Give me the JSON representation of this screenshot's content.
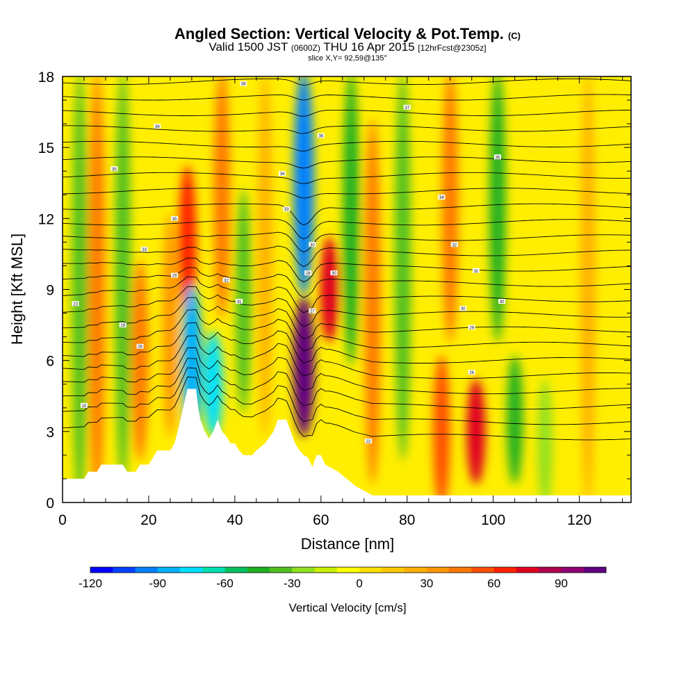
{
  "header": {
    "title": "Angled Section: Vertical Velocity & Pot.Temp.",
    "title_units": "(C)",
    "valid_prefix": "Valid 1500 JST",
    "valid_zulu": "(0600Z)",
    "valid_date": "THU 16 Apr 2015",
    "forecast_tag": "[12hrFcst@2305z]",
    "slice": "slice X,Y= 92,59@135°"
  },
  "chart_data": {
    "type": "heatmap",
    "xlabel": "Distance [nm]",
    "ylabel": "Height [Kft MSL]",
    "xlim": [
      0,
      132
    ],
    "ylim": [
      0,
      18
    ],
    "x_ticks": [
      0,
      20,
      40,
      60,
      80,
      100,
      120
    ],
    "y_ticks": [
      0,
      3,
      6,
      9,
      12,
      15,
      18
    ],
    "colorbar": {
      "label": "Vertical Velocity [cm/s]",
      "min": -120,
      "max": 110,
      "step": 10,
      "tick_values": [
        -120,
        -90,
        -60,
        -30,
        0,
        30,
        60,
        90
      ],
      "colors": [
        "#0000ff",
        "#0040ff",
        "#0080ff",
        "#00b0ff",
        "#00e0ff",
        "#00e0b0",
        "#00c060",
        "#20b020",
        "#50c020",
        "#90e020",
        "#c8f000",
        "#ffff00",
        "#ffe000",
        "#ffc800",
        "#ffb000",
        "#ff9800",
        "#ff7800",
        "#ff5000",
        "#ff2000",
        "#e00020",
        "#b00050",
        "#900070",
        "#600080"
      ]
    },
    "velocity_features": [
      {
        "x": 4,
        "z_bottom": 0,
        "z_top": 18,
        "value": -35
      },
      {
        "x": 8,
        "z_bottom": 0,
        "z_top": 18,
        "value": 40
      },
      {
        "x": 14,
        "z_bottom": 1,
        "z_top": 18,
        "value": -40
      },
      {
        "x": 18,
        "z_bottom": 2,
        "z_top": 10,
        "value": 45
      },
      {
        "x": 25,
        "z_bottom": 3,
        "z_top": 12,
        "value": 35
      },
      {
        "x": 29,
        "z_bottom": 8,
        "z_top": 14,
        "value": 65
      },
      {
        "x": 30,
        "z_bottom": 3,
        "z_top": 9,
        "value": -90
      },
      {
        "x": 35,
        "z_bottom": 3,
        "z_top": 7,
        "value": -75
      },
      {
        "x": 37,
        "z_bottom": 8,
        "z_top": 18,
        "value": 45
      },
      {
        "x": 42,
        "z_bottom": 4,
        "z_top": 13,
        "value": -35
      },
      {
        "x": 47,
        "z_bottom": 3,
        "z_top": 18,
        "value": 20
      },
      {
        "x": 56,
        "z_bottom": 3,
        "z_top": 8.5,
        "value": 100
      },
      {
        "x": 56,
        "z_bottom": 9,
        "z_top": 18,
        "value": -95
      },
      {
        "x": 62,
        "z_bottom": 7,
        "z_top": 11,
        "value": 70
      },
      {
        "x": 67,
        "z_bottom": 6,
        "z_top": 18,
        "value": -50
      },
      {
        "x": 72,
        "z_bottom": 1,
        "z_top": 16,
        "value": 40
      },
      {
        "x": 79,
        "z_bottom": 2,
        "z_top": 18,
        "value": -40
      },
      {
        "x": 88,
        "z_bottom": 0,
        "z_top": 6,
        "value": 55
      },
      {
        "x": 90,
        "z_bottom": 7,
        "z_top": 18,
        "value": 45
      },
      {
        "x": 96,
        "z_bottom": 1,
        "z_top": 5,
        "value": 75
      },
      {
        "x": 101,
        "z_bottom": 7,
        "z_top": 18,
        "value": -45
      },
      {
        "x": 105,
        "z_bottom": 1,
        "z_top": 6,
        "value": -45
      },
      {
        "x": 112,
        "z_bottom": 0,
        "z_top": 5,
        "value": -25
      },
      {
        "x": 122,
        "z_bottom": 0,
        "z_top": 18,
        "value": 25
      }
    ],
    "terrain_kft": [
      [
        0,
        1
      ],
      [
        5,
        1
      ],
      [
        6,
        1.3
      ],
      [
        8,
        1.3
      ],
      [
        9,
        1.6
      ],
      [
        14,
        1.6
      ],
      [
        15,
        1.3
      ],
      [
        16,
        1.3
      ],
      [
        17,
        1.3
      ],
      [
        18,
        1.6
      ],
      [
        20,
        1.6
      ],
      [
        21,
        1.9
      ],
      [
        22,
        2.2
      ],
      [
        25,
        2.2
      ],
      [
        26,
        2.5
      ],
      [
        27,
        3.2
      ],
      [
        28,
        4
      ],
      [
        29,
        4.8
      ],
      [
        31,
        4.8
      ],
      [
        31.5,
        4
      ],
      [
        32,
        3.5
      ],
      [
        33,
        3
      ],
      [
        34,
        2.7
      ],
      [
        35,
        3
      ],
      [
        36,
        3.5
      ],
      [
        37,
        3
      ],
      [
        38,
        2.8
      ],
      [
        39,
        2.5
      ],
      [
        40,
        2.5
      ],
      [
        41,
        2.2
      ],
      [
        42,
        2
      ],
      [
        44,
        2
      ],
      [
        45,
        2.2
      ],
      [
        47,
        2.5
      ],
      [
        49,
        3
      ],
      [
        50,
        3.5
      ],
      [
        52,
        3.5
      ],
      [
        53,
        3
      ],
      [
        54,
        2.5
      ],
      [
        55,
        2.2
      ],
      [
        56,
        2
      ],
      [
        57,
        1.9
      ],
      [
        58,
        1.5
      ],
      [
        59,
        2
      ],
      [
        60,
        2
      ],
      [
        61,
        1.6
      ],
      [
        62,
        1.5
      ],
      [
        64,
        1.3
      ],
      [
        66,
        1.0
      ],
      [
        68,
        0.7
      ],
      [
        70,
        0.5
      ],
      [
        72,
        0.3
      ],
      [
        132,
        0.3
      ]
    ],
    "theta_contour_labels": [
      {
        "x": 3,
        "z": 8.4,
        "label": "23"
      },
      {
        "x": 5,
        "z": 4.1,
        "label": "20"
      },
      {
        "x": 12,
        "z": 14.1,
        "label": "35"
      },
      {
        "x": 14,
        "z": 7.5,
        "label": "29"
      },
      {
        "x": 19,
        "z": 10.7,
        "label": "33"
      },
      {
        "x": 18,
        "z": 6.6,
        "label": "26"
      },
      {
        "x": 22,
        "z": 15.9,
        "label": "36"
      },
      {
        "x": 26,
        "z": 12.0,
        "label": "35"
      },
      {
        "x": 26,
        "z": 9.6,
        "label": "29"
      },
      {
        "x": 38,
        "z": 9.4,
        "label": "32"
      },
      {
        "x": 41,
        "z": 8.5,
        "label": "31"
      },
      {
        "x": 42,
        "z": 17.7,
        "label": "38"
      },
      {
        "x": 51,
        "z": 13.9,
        "label": "34"
      },
      {
        "x": 52,
        "z": 12.4,
        "label": "33"
      },
      {
        "x": 58,
        "z": 10.9,
        "label": "30"
      },
      {
        "x": 57,
        "z": 9.7,
        "label": "28"
      },
      {
        "x": 58,
        "z": 8.1,
        "label": "27"
      },
      {
        "x": 60,
        "z": 15.5,
        "label": "36"
      },
      {
        "x": 63,
        "z": 9.7,
        "label": "30"
      },
      {
        "x": 71,
        "z": 2.6,
        "label": "22"
      },
      {
        "x": 80,
        "z": 16.7,
        "label": "37"
      },
      {
        "x": 88,
        "z": 12.9,
        "label": "34"
      },
      {
        "x": 91,
        "z": 10.9,
        "label": "32"
      },
      {
        "x": 93,
        "z": 8.2,
        "label": "30"
      },
      {
        "x": 95,
        "z": 7.4,
        "label": "29"
      },
      {
        "x": 95,
        "z": 5.5,
        "label": "26"
      },
      {
        "x": 96,
        "z": 9.8,
        "label": "31"
      },
      {
        "x": 101,
        "z": 14.6,
        "label": "35"
      },
      {
        "x": 102,
        "z": 8.5,
        "label": "30"
      }
    ]
  }
}
